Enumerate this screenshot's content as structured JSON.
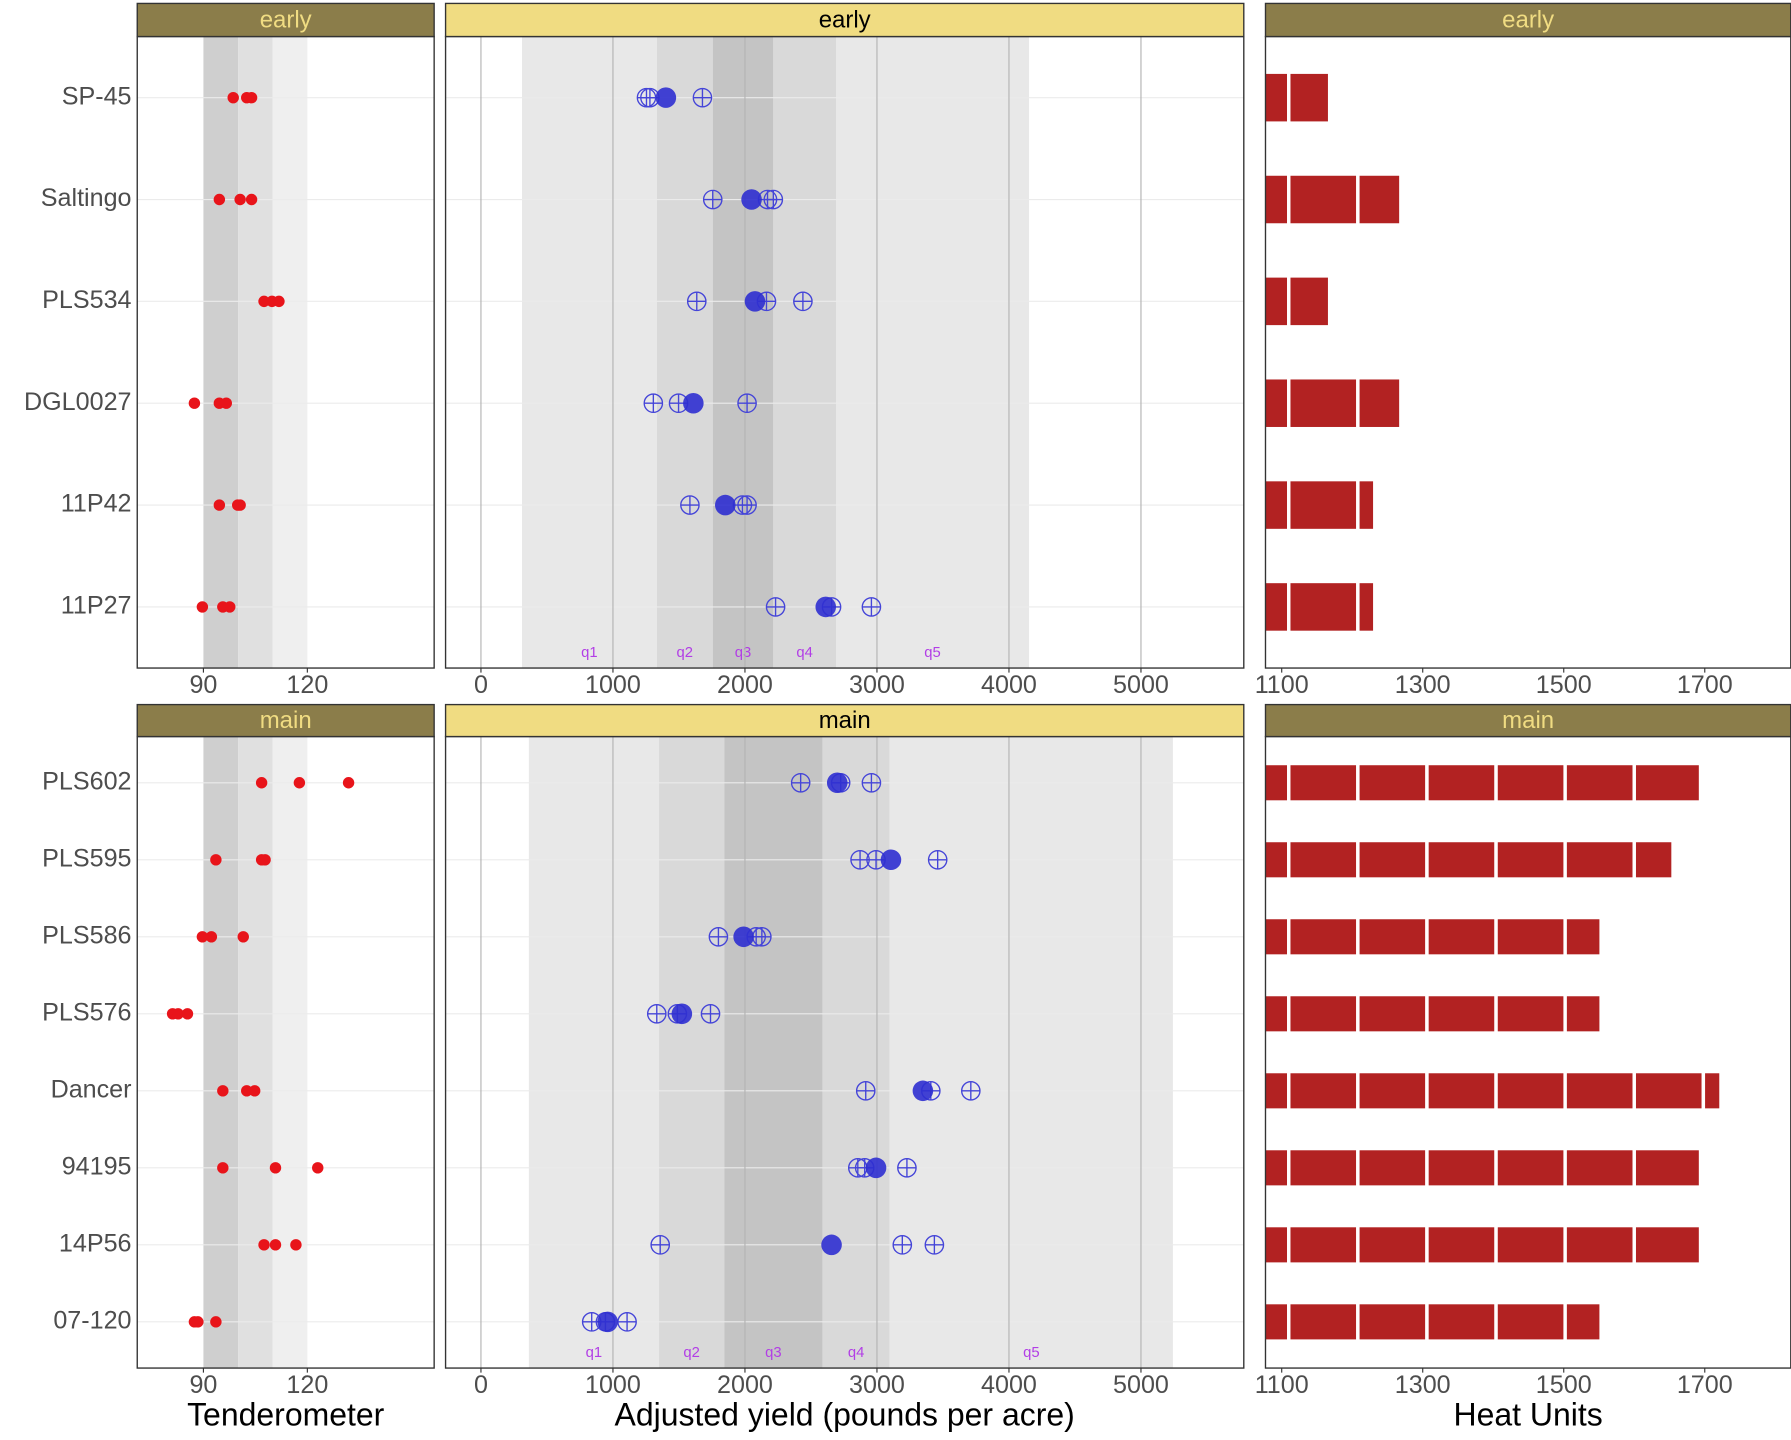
{
  "chart_data": [
    {
      "type": "dot",
      "strip": "early",
      "strip_color": "#8b7d4a",
      "strip_text_color": "#f0dc82",
      "categories": [
        "SP-45",
        "Saltingo",
        "PLS534",
        "DGL0027",
        "11P42",
        "11P27"
      ],
      "values": [
        [
          98.6,
          102.5,
          103.9
        ],
        [
          94.6,
          100.6,
          103.9
        ],
        [
          107.5,
          109.8,
          111.8
        ],
        [
          87.4,
          94.6,
          96.6
        ],
        [
          94.6,
          99.9,
          100.6
        ],
        [
          89.7,
          95.6,
          97.6
        ]
      ],
      "color": "#e8141a",
      "xlim": [
        70.9,
        156.6
      ],
      "xticks": [
        90,
        120
      ],
      "grid": true,
      "bands": [
        {
          "from": 90,
          "to": 100,
          "color": "#cfcfcf"
        },
        {
          "from": 100,
          "to": 110,
          "color": "#e0e0e0"
        },
        {
          "from": 110,
          "to": 120,
          "color": "#efefef"
        }
      ]
    },
    {
      "type": "interval",
      "strip": "early",
      "strip_color": "#f0dc82",
      "strip_text_color": "#000000",
      "values": [
        [
          1254,
          1280,
          1678
        ],
        [
          1756,
          2171,
          2215
        ],
        [
          1635,
          2163,
          2439
        ],
        [
          1306,
          1497,
          2016
        ],
        [
          1583,
          1981,
          2016
        ],
        [
          2232,
          2656,
          2958
        ]
      ],
      "means": [
        1401,
        2050,
        2076,
        1609,
        1851,
        2612
      ],
      "color": "#4545d8",
      "mean_color": "#2f2fd0",
      "xlim": [
        -268,
        5779
      ],
      "xticks": [
        0,
        1000,
        2000,
        3000,
        4000,
        5000
      ],
      "grid": true,
      "bands": [
        {
          "from": 311,
          "to": 1332,
          "label": "q1",
          "color": "#e8e8e8"
        },
        {
          "from": 1332,
          "to": 1756,
          "label": "q2",
          "color": "#d9d9d9"
        },
        {
          "from": 1756,
          "to": 2215,
          "label": "q3",
          "color": "#c4c4c4"
        },
        {
          "from": 2215,
          "to": 2690,
          "label": "q4",
          "color": "#d9d9d9"
        },
        {
          "from": 2690,
          "to": 4152,
          "label": "q5",
          "color": "#e8e8e8"
        }
      ]
    },
    {
      "type": "bar",
      "strip": "early",
      "strip_color": "#8b7d4a",
      "strip_text_color": "#f0dc82",
      "segments": [
        [
          1110,
          58
        ],
        [
          1110,
          98,
          61
        ],
        [
          1110,
          58
        ],
        [
          1110,
          98,
          61
        ],
        [
          1110,
          98,
          24
        ],
        [
          1110,
          98,
          24
        ]
      ],
      "color": "#b22222",
      "xlim": [
        1077,
        1822
      ],
      "xticks": [
        1100,
        1300,
        1500,
        1700
      ]
    },
    {
      "type": "dot",
      "strip": "main",
      "strip_color": "#8b7d4a",
      "strip_text_color": "#f0dc82",
      "categories": [
        "PLS602",
        "PLS595",
        "PLS586",
        "PLS576",
        "Dancer",
        "94195",
        "14P56",
        "07-120"
      ],
      "values": [
        [
          106.8,
          117.7,
          131.9
        ],
        [
          93.6,
          106.8,
          107.8
        ],
        [
          89.7,
          92.3,
          101.5
        ],
        [
          81.1,
          82.7,
          85.4
        ],
        [
          95.6,
          102.5,
          104.8
        ],
        [
          95.6,
          110.8,
          123
        ],
        [
          107.5,
          110.8,
          116.7
        ],
        [
          87.4,
          88.4,
          93.6
        ]
      ],
      "color": "#e8141a",
      "xlim": [
        70.9,
        156.6
      ],
      "xticks": [
        90,
        120
      ],
      "grid": true,
      "xlabel": "Tenderometer",
      "bands": [
        {
          "from": 90,
          "to": 100,
          "color": "#cfcfcf"
        },
        {
          "from": 100,
          "to": 110,
          "color": "#e0e0e0"
        },
        {
          "from": 110,
          "to": 120,
          "color": "#efefef"
        }
      ]
    },
    {
      "type": "interval",
      "strip": "main",
      "strip_color": "#f0dc82",
      "strip_text_color": "#000000",
      "values": [
        [
          2422,
          2725,
          2958
        ],
        [
          2872,
          2993,
          3460
        ],
        [
          1799,
          2085,
          2128
        ],
        [
          1332,
          1488,
          1739
        ],
        [
          2915,
          3408,
          3711
        ],
        [
          2855,
          2907,
          3227
        ],
        [
          1358,
          3192,
          3435
        ],
        [
          839,
          943,
          1107
        ]
      ],
      "means": [
        2699,
        3106,
        1990,
        1522,
        3348,
        2993,
        2656,
        960
      ],
      "color": "#4545d8",
      "mean_color": "#2f2fd0",
      "xlim": [
        -268,
        5779
      ],
      "xticks": [
        0,
        1000,
        2000,
        3000,
        4000,
        5000
      ],
      "grid": true,
      "xlabel": "Adjusted yield (pounds per acre)",
      "bands": [
        {
          "from": 363,
          "to": 1349,
          "label": "q1",
          "color": "#e8e8e8"
        },
        {
          "from": 1349,
          "to": 1843,
          "label": "q2",
          "color": "#d9d9d9"
        },
        {
          "from": 1843,
          "to": 2587,
          "label": "q3",
          "color": "#c4c4c4"
        },
        {
          "from": 2587,
          "to": 3097,
          "label": "q4",
          "color": "#d9d9d9"
        },
        {
          "from": 3097,
          "to": 5242,
          "label": "q5",
          "color": "#e8e8e8"
        }
      ]
    },
    {
      "type": "bar",
      "strip": "main",
      "strip_color": "#8b7d4a",
      "strip_text_color": "#f0dc82",
      "segments": [
        [
          1110,
          98,
          98,
          98,
          98,
          98,
          94
        ],
        [
          1110,
          98,
          98,
          98,
          98,
          98,
          55
        ],
        [
          1110,
          98,
          98,
          98,
          98,
          51
        ],
        [
          1110,
          98,
          98,
          98,
          98,
          51
        ],
        [
          1110,
          98,
          98,
          98,
          98,
          98,
          98,
          25
        ],
        [
          1110,
          98,
          98,
          98,
          98,
          98,
          94
        ],
        [
          1110,
          98,
          98,
          98,
          98,
          98,
          94
        ],
        [
          1110,
          98,
          98,
          98,
          98,
          51
        ]
      ],
      "color": "#b22222",
      "xlim": [
        1077,
        1822
      ],
      "xticks": [
        1100,
        1300,
        1500,
        1700
      ],
      "xlabel": "Heat Units"
    }
  ]
}
